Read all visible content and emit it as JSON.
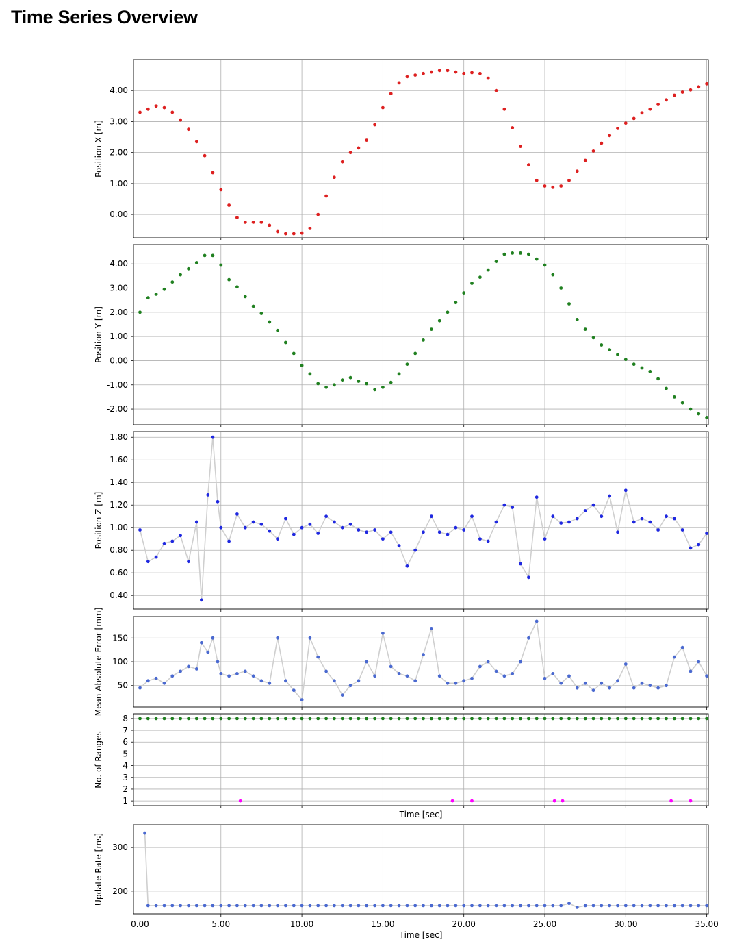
{
  "page": {
    "title": "Time Series Overview"
  },
  "chart_data": [
    {
      "type": "scatter",
      "ylabel": "Position X [m]",
      "xlabel": "",
      "xlim": [
        -0.4,
        35.1
      ],
      "ylim": [
        -0.75,
        5.0
      ],
      "yticks": [
        0,
        1,
        2,
        3,
        4
      ],
      "tick_decimals": 2,
      "grid": true,
      "color": "#dd2020",
      "connect": false,
      "series": [
        {
          "x": [
            0,
            0.5,
            1,
            1.5,
            2,
            2.5,
            3,
            3.5,
            4,
            4.5,
            5,
            5.5,
            6,
            6.5,
            7,
            7.5,
            8,
            8.5,
            9,
            9.5,
            10,
            10.5,
            11,
            11.5,
            12,
            12.5,
            13,
            13.5,
            14,
            14.5,
            15,
            15.5,
            16,
            16.5,
            17,
            17.5,
            18,
            18.5,
            19,
            19.5,
            20,
            20.5,
            21,
            21.5,
            22,
            22.5,
            23,
            23.5,
            24,
            24.5,
            25,
            25.5,
            26,
            26.5,
            27,
            27.5,
            28,
            28.5,
            29,
            29.5,
            30,
            30.5,
            31,
            31.5,
            32,
            32.5,
            33,
            33.5,
            34,
            34.5,
            35
          ],
          "y": [
            3.3,
            3.4,
            3.5,
            3.45,
            3.3,
            3.05,
            2.75,
            2.35,
            1.9,
            1.35,
            0.8,
            0.3,
            -0.1,
            -0.25,
            -0.25,
            -0.25,
            -0.35,
            -0.55,
            -0.62,
            -0.62,
            -0.6,
            -0.45,
            0.0,
            0.6,
            1.2,
            1.7,
            2.0,
            2.15,
            2.4,
            2.9,
            3.45,
            3.9,
            4.25,
            4.45,
            4.5,
            4.55,
            4.6,
            4.65,
            4.65,
            4.6,
            4.55,
            4.58,
            4.55,
            4.4,
            4.0,
            3.4,
            2.8,
            2.2,
            1.6,
            1.1,
            0.92,
            0.88,
            0.92,
            1.1,
            1.4,
            1.75,
            2.05,
            2.3,
            2.55,
            2.78,
            2.95,
            3.1,
            3.28,
            3.4,
            3.55,
            3.7,
            3.85,
            3.95,
            4.02,
            4.12,
            4.22
          ]
        }
      ]
    },
    {
      "type": "scatter",
      "ylabel": "Position Y [m]",
      "xlabel": "",
      "xlim": [
        -0.4,
        35.1
      ],
      "ylim": [
        -2.65,
        4.8
      ],
      "yticks": [
        -2,
        -1,
        0,
        1,
        2,
        3,
        4
      ],
      "tick_decimals": 2,
      "grid": true,
      "color": "#208020",
      "connect": false,
      "series": [
        {
          "x": [
            0,
            0.5,
            1,
            1.5,
            2,
            2.5,
            3,
            3.5,
            4,
            4.5,
            5,
            5.5,
            6,
            6.5,
            7,
            7.5,
            8,
            8.5,
            9,
            9.5,
            10,
            10.5,
            11,
            11.5,
            12,
            12.5,
            13,
            13.5,
            14,
            14.5,
            15,
            15.5,
            16,
            16.5,
            17,
            17.5,
            18,
            18.5,
            19,
            19.5,
            20,
            20.5,
            21,
            21.5,
            22,
            22.5,
            23,
            23.5,
            24,
            24.5,
            25,
            25.5,
            26,
            26.5,
            27,
            27.5,
            28,
            28.5,
            29,
            29.5,
            30,
            30.5,
            31,
            31.5,
            32,
            32.5,
            33,
            33.5,
            34,
            34.5,
            35
          ],
          "y": [
            2.0,
            2.6,
            2.75,
            2.95,
            3.25,
            3.55,
            3.8,
            4.05,
            4.35,
            4.35,
            3.95,
            3.35,
            3.05,
            2.65,
            2.25,
            1.95,
            1.6,
            1.25,
            0.75,
            0.3,
            -0.2,
            -0.55,
            -0.95,
            -1.1,
            -1.0,
            -0.8,
            -0.7,
            -0.85,
            -0.95,
            -1.2,
            -1.1,
            -0.9,
            -0.55,
            -0.15,
            0.3,
            0.85,
            1.3,
            1.65,
            2.0,
            2.4,
            2.8,
            3.2,
            3.45,
            3.75,
            4.1,
            4.4,
            4.45,
            4.45,
            4.4,
            4.2,
            3.95,
            3.55,
            3.0,
            2.35,
            1.7,
            1.3,
            0.95,
            0.65,
            0.45,
            0.25,
            0.05,
            -0.15,
            -0.3,
            -0.45,
            -0.75,
            -1.15,
            -1.5,
            -1.75,
            -2.0,
            -2.2,
            -2.35
          ]
        }
      ]
    },
    {
      "type": "line",
      "ylabel": "Position Z [m]",
      "xlabel": "",
      "xlim": [
        -0.4,
        35.1
      ],
      "ylim": [
        0.28,
        1.85
      ],
      "yticks": [
        0.4,
        0.6,
        0.8,
        1.0,
        1.2,
        1.4,
        1.6,
        1.8
      ],
      "tick_decimals": 2,
      "grid": true,
      "color": "#1f28e0",
      "connect": true,
      "series": [
        {
          "x": [
            0,
            0.5,
            1,
            1.5,
            2,
            2.5,
            3,
            3.5,
            3.8,
            4.2,
            4.5,
            4.8,
            5,
            5.5,
            6,
            6.5,
            7,
            7.5,
            8,
            8.5,
            9,
            9.5,
            10,
            10.5,
            11,
            11.5,
            12,
            12.5,
            13,
            13.5,
            14,
            14.5,
            15,
            15.5,
            16,
            16.5,
            17,
            17.5,
            18,
            18.5,
            19,
            19.5,
            20,
            20.5,
            21,
            21.5,
            22,
            22.5,
            23,
            23.5,
            24,
            24.5,
            25,
            25.5,
            26,
            26.5,
            27,
            27.5,
            28,
            28.5,
            29,
            29.5,
            30,
            30.5,
            31,
            31.5,
            32,
            32.5,
            33,
            33.5,
            34,
            34.5,
            35
          ],
          "y": [
            0.98,
            0.7,
            0.74,
            0.86,
            0.88,
            0.93,
            0.7,
            1.05,
            0.36,
            1.29,
            1.8,
            1.23,
            1.0,
            0.88,
            1.12,
            1.0,
            1.05,
            1.03,
            0.97,
            0.9,
            1.08,
            0.94,
            1.0,
            1.03,
            0.95,
            1.1,
            1.05,
            1.0,
            1.03,
            0.98,
            0.96,
            0.98,
            0.9,
            0.96,
            0.84,
            0.66,
            0.8,
            0.96,
            1.1,
            0.96,
            0.94,
            1.0,
            0.98,
            1.1,
            0.9,
            0.88,
            1.05,
            1.2,
            1.18,
            0.68,
            0.56,
            1.27,
            0.9,
            1.1,
            1.04,
            1.05,
            1.08,
            1.15,
            1.2,
            1.1,
            1.28,
            0.96,
            1.33,
            1.05,
            1.08,
            1.05,
            0.98,
            1.1,
            1.08,
            0.98,
            0.82,
            0.85,
            0.95
          ]
        }
      ]
    },
    {
      "type": "line",
      "ylabel": "Mean Absolute Error [mm]",
      "xlabel": "",
      "xlim": [
        -0.4,
        35.1
      ],
      "ylim": [
        5,
        195
      ],
      "yticks": [
        50,
        100,
        150
      ],
      "tick_decimals": 0,
      "grid": true,
      "color": "#4a69d0",
      "connect": true,
      "series": [
        {
          "x": [
            0,
            0.5,
            1,
            1.5,
            2,
            2.5,
            3,
            3.5,
            3.8,
            4.2,
            4.5,
            4.8,
            5,
            5.5,
            6,
            6.5,
            7,
            7.5,
            8,
            8.5,
            9,
            9.5,
            10,
            10.5,
            11,
            11.5,
            12,
            12.5,
            13,
            13.5,
            14,
            14.5,
            15,
            15.5,
            16,
            16.5,
            17,
            17.5,
            18,
            18.5,
            19,
            19.5,
            20,
            20.5,
            21,
            21.5,
            22,
            22.5,
            23,
            23.5,
            24,
            24.5,
            25,
            25.5,
            26,
            26.5,
            27,
            27.5,
            28,
            28.5,
            29,
            29.5,
            30,
            30.5,
            31,
            31.5,
            32,
            32.5,
            33,
            33.5,
            34,
            34.5,
            35
          ],
          "y": [
            45,
            60,
            65,
            55,
            70,
            80,
            90,
            85,
            140,
            120,
            150,
            100,
            75,
            70,
            75,
            80,
            70,
            60,
            55,
            150,
            60,
            40,
            20,
            150,
            110,
            80,
            60,
            30,
            50,
            60,
            100,
            70,
            160,
            90,
            75,
            70,
            60,
            115,
            170,
            70,
            55,
            55,
            60,
            65,
            90,
            100,
            80,
            70,
            75,
            100,
            150,
            185,
            65,
            75,
            55,
            70,
            45,
            55,
            40,
            55,
            45,
            60,
            95,
            45,
            55,
            50,
            45,
            50,
            110,
            130,
            80,
            100,
            70
          ]
        }
      ]
    },
    {
      "type": "scatter",
      "ylabel": "No. of Ranges",
      "xlabel": "Time [sec]",
      "xlim": [
        -0.4,
        35.1
      ],
      "ylim": [
        0.6,
        8.4
      ],
      "yticks": [
        1,
        2,
        3,
        4,
        5,
        6,
        7,
        8
      ],
      "tick_decimals": 0,
      "grid": true,
      "connect": false,
      "series": [
        {
          "name": "",
          "color": "#208020",
          "x": [
            0,
            0.5,
            1,
            1.5,
            2,
            2.5,
            3,
            3.5,
            4,
            4.5,
            5,
            5.5,
            6,
            6.5,
            7,
            7.5,
            8,
            8.5,
            9,
            9.5,
            10,
            10.5,
            11,
            11.5,
            12,
            12.5,
            13,
            13.5,
            14,
            14.5,
            15,
            15.5,
            16,
            16.5,
            17,
            17.5,
            18,
            18.5,
            19,
            19.5,
            20,
            20.5,
            21,
            21.5,
            22,
            22.5,
            23,
            23.5,
            24,
            24.5,
            25,
            25.5,
            26,
            26.5,
            27,
            27.5,
            28,
            28.5,
            29,
            29.5,
            30,
            30.5,
            31,
            31.5,
            32,
            32.5,
            33,
            33.5,
            34,
            34.5,
            35
          ],
          "y": [
            8,
            8,
            8,
            8,
            8,
            8,
            8,
            8,
            8,
            8,
            8,
            8,
            8,
            8,
            8,
            8,
            8,
            8,
            8,
            8,
            8,
            8,
            8,
            8,
            8,
            8,
            8,
            8,
            8,
            8,
            8,
            8,
            8,
            8,
            8,
            8,
            8,
            8,
            8,
            8,
            8,
            8,
            8,
            8,
            8,
            8,
            8,
            8,
            8,
            8,
            8,
            8,
            8,
            8,
            8,
            8,
            8,
            8,
            8,
            8,
            8,
            8,
            8,
            8,
            8,
            8,
            8,
            8,
            8,
            8,
            8
          ]
        },
        {
          "name": "",
          "color": "#ff00ff",
          "x": [
            6.2,
            19.3,
            20.5,
            25.6,
            26.1,
            32.8,
            34.0
          ],
          "y": [
            1,
            1,
            1,
            1,
            1,
            1,
            1
          ]
        }
      ]
    },
    {
      "type": "line",
      "ylabel": "Update Rate [ms]",
      "xlabel": "Time [sec]",
      "xlim": [
        -0.4,
        35.1
      ],
      "ylim": [
        148,
        352
      ],
      "yticks": [
        200,
        300
      ],
      "tick_decimals": 0,
      "grid": true,
      "color": "#4a69d0",
      "connect": true,
      "series": [
        {
          "x": [
            0.3,
            0.5,
            1,
            1.5,
            2,
            2.5,
            3,
            3.5,
            4,
            4.5,
            5,
            5.5,
            6,
            6.5,
            7,
            7.5,
            8,
            8.5,
            9,
            9.5,
            10,
            10.5,
            11,
            11.5,
            12,
            12.5,
            13,
            13.5,
            14,
            14.5,
            15,
            15.5,
            16,
            16.5,
            17,
            17.5,
            18,
            18.5,
            19,
            19.5,
            20,
            20.5,
            21,
            21.5,
            22,
            22.5,
            23,
            23.5,
            24,
            24.5,
            25,
            25.5,
            26,
            26.5,
            27,
            27.5,
            28,
            28.5,
            29,
            29.5,
            30,
            30.5,
            31,
            31.5,
            32,
            32.5,
            33,
            33.5,
            34,
            34.5,
            35
          ],
          "y": [
            333,
            167,
            167,
            167,
            167,
            167,
            167,
            167,
            167,
            167,
            167,
            167,
            167,
            167,
            167,
            167,
            167,
            167,
            167,
            167,
            167,
            167,
            167,
            167,
            167,
            167,
            167,
            167,
            167,
            167,
            167,
            167,
            167,
            167,
            167,
            167,
            167,
            167,
            167,
            167,
            167,
            167,
            167,
            167,
            167,
            167,
            167,
            167,
            167,
            167,
            167,
            167,
            167,
            172,
            163,
            167,
            167,
            167,
            167,
            167,
            167,
            167,
            167,
            167,
            167,
            167,
            167,
            167,
            167,
            167,
            167
          ]
        }
      ]
    }
  ],
  "x_axis": {
    "ticks": [
      0,
      5,
      10,
      15,
      20,
      25,
      30,
      35
    ],
    "tick_decimals": 2
  }
}
